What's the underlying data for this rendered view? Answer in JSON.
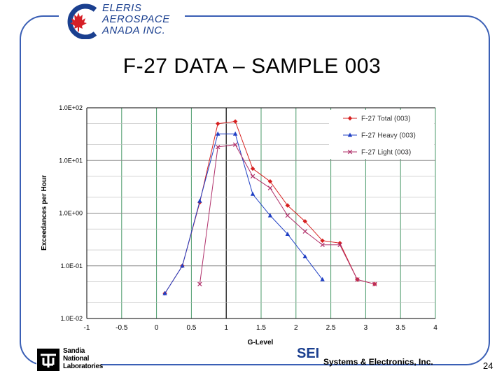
{
  "header": {
    "logo_line1": "ELERIS",
    "logo_line2": "AEROSPACE",
    "logo_line3": "ANADA  INC."
  },
  "slide_title": "F-27 DATA – SAMPLE 003",
  "footer": {
    "sandia_line1": "Sandia",
    "sandia_line2": "National",
    "sandia_line3": "Laboratories",
    "sei_label": "SEI",
    "company_label": "Systems & Electronics, Inc.",
    "page_number": "24"
  },
  "colors": {
    "frame": "#3a5fb5",
    "total": "#d62020",
    "heavy": "#1f3fc4",
    "light": "#b0306a",
    "grid": "#4a9a6a"
  },
  "chart_data": {
    "type": "line",
    "xlabel": "G-Level",
    "ylabel": "Exceedances per Hour",
    "xlim": [
      -1,
      4
    ],
    "ylim": [
      0.01,
      100
    ],
    "yscale": "log",
    "x_ticks": [
      "-1",
      "-0.5",
      "0",
      "0.5",
      "1",
      "1.5",
      "2",
      "2.5",
      "3",
      "3.5",
      "4"
    ],
    "y_ticks": [
      "1.0E+02",
      "1.0E+01",
      "1.0E+00",
      "1.0E-01",
      "1.0E-02"
    ],
    "grid": true,
    "legend_position": "top-right",
    "series": [
      {
        "name": "F-27 Total (003)",
        "marker": "diamond",
        "x": [
          0.12,
          0.37,
          0.62,
          0.88,
          1.13,
          1.38,
          1.63,
          1.88,
          2.13,
          2.38,
          2.63,
          2.88,
          3.13
        ],
        "y": [
          0.03,
          0.1,
          1.6,
          50,
          55,
          7,
          4,
          1.4,
          0.7,
          0.3,
          0.27,
          0.055,
          0.045
        ]
      },
      {
        "name": "F-27 Heavy (003)",
        "marker": "triangle",
        "x": [
          0.12,
          0.37,
          0.62,
          0.88,
          1.13,
          1.38,
          1.63,
          1.88,
          2.13,
          2.38
        ],
        "y": [
          0.03,
          0.1,
          1.7,
          32,
          32,
          2.3,
          0.9,
          0.4,
          0.15,
          0.055
        ]
      },
      {
        "name": "F-27 Light (003)",
        "marker": "x",
        "x": [
          0.62,
          0.88,
          1.13,
          1.38,
          1.63,
          1.88,
          2.13,
          2.38,
          2.63,
          2.88,
          3.13
        ],
        "y": [
          0.045,
          18,
          20,
          5,
          3,
          0.9,
          0.45,
          0.25,
          0.25,
          0.055,
          0.045
        ]
      }
    ]
  }
}
